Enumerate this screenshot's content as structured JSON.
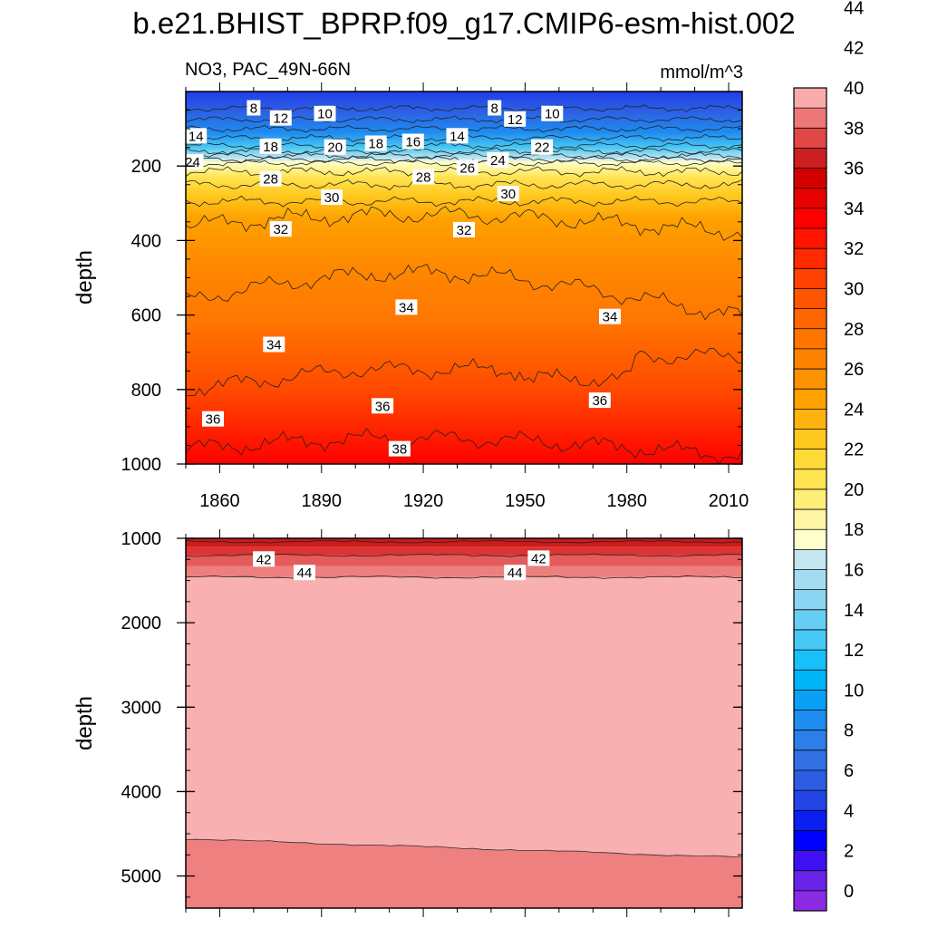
{
  "figure": {
    "title": "b.e21.BHIST_BPRP.f09_g17.CMIP6-esm-hist.002",
    "left_label": "NO3, PAC_49N-66N",
    "right_label": "mmol/m^3"
  },
  "chart_data": [
    {
      "type": "contour",
      "panel": "upper",
      "xlabel": "",
      "ylabel": "depth",
      "xlim": [
        1850,
        2014
      ],
      "ylim": [
        1000,
        0
      ],
      "xticks": [
        1860,
        1890,
        1920,
        1950,
        1980,
        2010
      ],
      "yticks": [
        200,
        400,
        600,
        800,
        1000
      ],
      "contour_level_isolines": [
        {
          "level": 8,
          "depth": 45
        },
        {
          "level": 10,
          "depth": 75
        },
        {
          "level": 12,
          "depth": 100
        },
        {
          "level": 14,
          "depth": 125
        },
        {
          "level": 16,
          "depth": 145
        },
        {
          "level": 18,
          "depth": 160
        },
        {
          "level": 20,
          "depth": 172
        },
        {
          "level": 22,
          "depth": 182
        },
        {
          "level": 24,
          "depth": 192
        },
        {
          "level": 26,
          "depth": 215
        },
        {
          "level": 28,
          "depth": 250
        },
        {
          "level": 30,
          "depth": 295
        },
        {
          "level": 32,
          "depth": 360
        },
        {
          "level": 34,
          "depth": 560
        },
        {
          "level": 36,
          "depth": 800
        },
        {
          "level": 38,
          "depth": 960
        }
      ],
      "contour_labels": [
        {
          "text": "8",
          "year": 1870,
          "depth": 45
        },
        {
          "text": "12",
          "year": 1878,
          "depth": 72
        },
        {
          "text": "10",
          "year": 1891,
          "depth": 60
        },
        {
          "text": "8",
          "year": 1941,
          "depth": 45
        },
        {
          "text": "12",
          "year": 1947,
          "depth": 75
        },
        {
          "text": "10",
          "year": 1958,
          "depth": 60
        },
        {
          "text": "14",
          "year": 1853,
          "depth": 120
        },
        {
          "text": "18",
          "year": 1875,
          "depth": 148
        },
        {
          "text": "20",
          "year": 1894,
          "depth": 150
        },
        {
          "text": "18",
          "year": 1906,
          "depth": 140
        },
        {
          "text": "16",
          "year": 1917,
          "depth": 135
        },
        {
          "text": "14",
          "year": 1930,
          "depth": 120
        },
        {
          "text": "22",
          "year": 1955,
          "depth": 150
        },
        {
          "text": "24",
          "year": 1852,
          "depth": 190
        },
        {
          "text": "24",
          "year": 1942,
          "depth": 185
        },
        {
          "text": "26",
          "year": 1933,
          "depth": 205
        },
        {
          "text": "28",
          "year": 1875,
          "depth": 235
        },
        {
          "text": "28",
          "year": 1920,
          "depth": 230
        },
        {
          "text": "30",
          "year": 1893,
          "depth": 285
        },
        {
          "text": "30",
          "year": 1945,
          "depth": 275
        },
        {
          "text": "32",
          "year": 1878,
          "depth": 370
        },
        {
          "text": "32",
          "year": 1932,
          "depth": 372
        },
        {
          "text": "34",
          "year": 1915,
          "depth": 580
        },
        {
          "text": "34",
          "year": 1975,
          "depth": 605
        },
        {
          "text": "34",
          "year": 1876,
          "depth": 680
        },
        {
          "text": "36",
          "year": 1858,
          "depth": 880
        },
        {
          "text": "36",
          "year": 1908,
          "depth": 845
        },
        {
          "text": "36",
          "year": 1972,
          "depth": 830
        },
        {
          "text": "38",
          "year": 1913,
          "depth": 960
        }
      ]
    },
    {
      "type": "contour",
      "panel": "lower",
      "xlabel": "",
      "ylabel": "depth",
      "xlim": [
        1850,
        2014
      ],
      "ylim": [
        5380,
        1000
      ],
      "yticks": [
        1000,
        2000,
        3000,
        4000,
        5000
      ],
      "contour_level_isolines": [
        {
          "level": 40,
          "depth": 1040
        },
        {
          "level": 42,
          "depth": 1200
        },
        {
          "level": 44,
          "depth": 1460
        },
        {
          "level": 46,
          "depth_start": 4560,
          "depth_end": 4780
        }
      ],
      "contour_labels": [
        {
          "text": "42",
          "year": 1873,
          "depth": 1250
        },
        {
          "text": "44",
          "year": 1885,
          "depth": 1410
        },
        {
          "text": "44",
          "year": 1947,
          "depth": 1410
        },
        {
          "text": "42",
          "year": 1954,
          "depth": 1240
        }
      ]
    }
  ],
  "colorbar": {
    "labels": [
      "0",
      "2",
      "4",
      "6",
      "8",
      "10",
      "12",
      "14",
      "16",
      "18",
      "20",
      "22",
      "24",
      "26",
      "28",
      "30",
      "32",
      "34",
      "36",
      "38",
      "40",
      "42",
      "44"
    ],
    "colors": [
      "#8b2be3",
      "#6a24e8",
      "#4010f5",
      "#0000ff",
      "#0a1ff0",
      "#2345e6",
      "#2d5de3",
      "#3371e5",
      "#2d7ee8",
      "#1f8cf0",
      "#0aa0f5",
      "#00b4f8",
      "#19bff8",
      "#47c8f5",
      "#68cdf3",
      "#8ad4f2",
      "#a5dbf1",
      "#c3e6f0",
      "#ffffcc",
      "#fff5a6",
      "#ffee78",
      "#ffe452",
      "#ffd936",
      "#ffc81e",
      "#ffb310",
      "#ffa200",
      "#ff9200",
      "#ff8300",
      "#ff7500",
      "#ff6600",
      "#ff5500",
      "#ff4000",
      "#ff2a00",
      "#ff1400",
      "#ff0000",
      "#e80000",
      "#d40000",
      "#cc2020",
      "#e04848",
      "#ee7777",
      "#f9aaaa"
    ]
  }
}
